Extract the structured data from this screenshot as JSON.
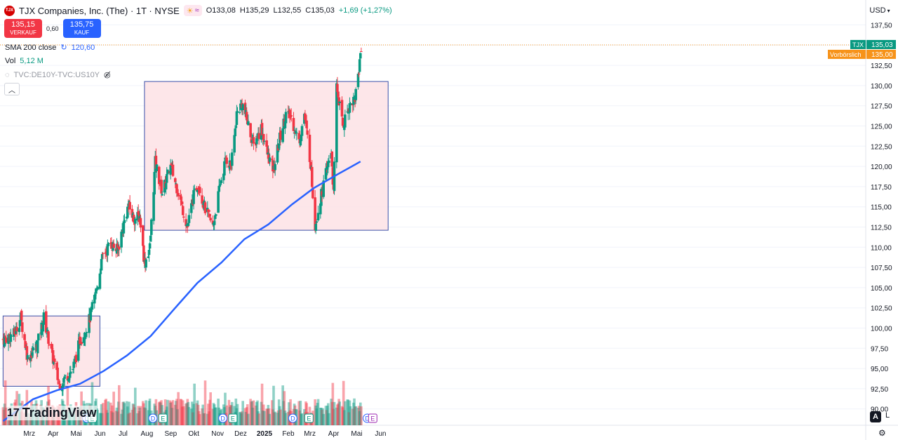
{
  "header": {
    "logo_text": "TJX",
    "title": "TJX Companies, Inc. (The) · 1T · NYSE",
    "open": "O133,08",
    "high": "H135,29",
    "low": "L132,55",
    "close": "C135,03",
    "change": "+1,69 (+1,27%)"
  },
  "trade": {
    "sell_price": "135,15",
    "sell_label": "VERKAUF",
    "spread": "0,60",
    "buy_price": "135,75",
    "buy_label": "KAUF"
  },
  "indicators": {
    "sma_label": "SMA 200 close",
    "sma_value": "120,60",
    "vol_label": "Vol",
    "vol_value": "5,12 M",
    "compare_label": "TVC:DE10Y-TVC:US10Y"
  },
  "currency": "USD",
  "branding": "TradingView",
  "scale_modes": {
    "auto": "A",
    "log": "L"
  },
  "colors": {
    "up": "#089981",
    "down": "#f23645",
    "sma": "#2962ff",
    "box_fill": "#fde2e5",
    "box_stroke": "#3a4fa8",
    "pre_label": "#f7931a"
  },
  "chart_data": {
    "type": "candlestick",
    "title": "TJX Companies, Inc. (The) · 1T · NYSE",
    "y_range": [
      90.0,
      138.5
    ],
    "y_ticks": [
      "137,50",
      "135,00",
      "132,50",
      "130,00",
      "127,50",
      "125,00",
      "122,50",
      "120,00",
      "117,50",
      "115,00",
      "112,50",
      "110,00",
      "107,50",
      "105,00",
      "102,50",
      "100,00",
      "97,50",
      "95,00",
      "92,50",
      "90,00"
    ],
    "y_tick_values": [
      137.5,
      135,
      132.5,
      130,
      127.5,
      125,
      122.5,
      120,
      117.5,
      115,
      112.5,
      110,
      107.5,
      105,
      102.5,
      100,
      97.5,
      95,
      92.5,
      90
    ],
    "x_labels": [
      "Mrz",
      "Apr",
      "Mai",
      "Jun",
      "Jul",
      "Aug",
      "Sep",
      "Okt",
      "Nov",
      "Dez",
      "2025",
      "Feb",
      "Mrz",
      "Apr",
      "Mai",
      "Jun"
    ],
    "bold_x_label": "2025",
    "current_label": {
      "symbol": "TJX",
      "value": "135,03"
    },
    "premarket_label": {
      "text": "Vorbörslich",
      "value": "135,00"
    },
    "rectangles": [
      {
        "from": "2024-02-05",
        "to": "2024-06-10",
        "top": 101.5,
        "bottom": 92.8
      },
      {
        "from": "2024-08-07",
        "to": "2025-06-20",
        "top": 130.5,
        "bottom": 112.1
      }
    ],
    "sma_200": [
      [
        "2024-02-05",
        88.5
      ],
      [
        "2024-03-15",
        91.2
      ],
      [
        "2024-04-15",
        92.3
      ],
      [
        "2024-05-15",
        93.1
      ],
      [
        "2024-06-15",
        94.7
      ],
      [
        "2024-07-15",
        96.6
      ],
      [
        "2024-08-15",
        99.0
      ],
      [
        "2024-09-15",
        102.4
      ],
      [
        "2024-10-15",
        105.6
      ],
      [
        "2024-11-15",
        108.1
      ],
      [
        "2024-12-15",
        111.0
      ],
      [
        "2025-01-15",
        112.8
      ],
      [
        "2025-02-15",
        115.3
      ],
      [
        "2025-03-15",
        117.3
      ],
      [
        "2025-04-15",
        119.0
      ],
      [
        "2025-05-15",
        120.6
      ]
    ],
    "price_path": [
      [
        "2024-02-05",
        98.6
      ],
      [
        "2024-02-20",
        99.3
      ],
      [
        "2024-02-28",
        101.3
      ],
      [
        "2024-03-08",
        96.3
      ],
      [
        "2024-03-20",
        97.8
      ],
      [
        "2024-03-29",
        101.3
      ],
      [
        "2024-04-08",
        97.0
      ],
      [
        "2024-04-18",
        93.0
      ],
      [
        "2024-04-25",
        93.8
      ],
      [
        "2024-05-06",
        95.0
      ],
      [
        "2024-05-15",
        98.5
      ],
      [
        "2024-05-22",
        99.6
      ],
      [
        "2024-05-28",
        101.3
      ],
      [
        "2024-06-05",
        104.5
      ],
      [
        "2024-06-14",
        109.0
      ],
      [
        "2024-06-24",
        110.5
      ],
      [
        "2024-07-03",
        109.5
      ],
      [
        "2024-07-10",
        112.5
      ],
      [
        "2024-07-17",
        115.2
      ],
      [
        "2024-07-24",
        113.5
      ],
      [
        "2024-08-01",
        113.8
      ],
      [
        "2024-08-07",
        108.0
      ],
      [
        "2024-08-14",
        110.0
      ],
      [
        "2024-08-21",
        120.5
      ],
      [
        "2024-08-30",
        116.8
      ],
      [
        "2024-09-10",
        120.0
      ],
      [
        "2024-09-20",
        116.8
      ],
      [
        "2024-10-02",
        112.5
      ],
      [
        "2024-10-09",
        116.0
      ],
      [
        "2024-10-16",
        118.0
      ],
      [
        "2024-10-24",
        115.0
      ],
      [
        "2024-11-04",
        112.5
      ],
      [
        "2024-11-14",
        118.0
      ],
      [
        "2024-11-21",
        121.0
      ],
      [
        "2024-11-28",
        120.0
      ],
      [
        "2024-12-05",
        126.5
      ],
      [
        "2024-12-12",
        127.8
      ],
      [
        "2024-12-19",
        125.5
      ],
      [
        "2024-12-27",
        122.5
      ],
      [
        "2025-01-06",
        124.8
      ],
      [
        "2025-01-14",
        121.5
      ],
      [
        "2025-01-22",
        119.5
      ],
      [
        "2025-01-30",
        123.5
      ],
      [
        "2025-02-07",
        126.5
      ],
      [
        "2025-02-14",
        126.0
      ],
      [
        "2025-02-24",
        123.0
      ],
      [
        "2025-03-03",
        126.5
      ],
      [
        "2025-03-11",
        120.5
      ],
      [
        "2025-03-17",
        112.8
      ],
      [
        "2025-03-24",
        116.0
      ],
      [
        "2025-03-31",
        119.0
      ],
      [
        "2025-04-07",
        122.0
      ],
      [
        "2025-04-10",
        116.5
      ],
      [
        "2025-04-14",
        130.0
      ],
      [
        "2025-04-22",
        125.0
      ],
      [
        "2025-04-30",
        127.5
      ],
      [
        "2025-05-08",
        128.5
      ],
      [
        "2025-05-13",
        132.0
      ],
      [
        "2025-05-16",
        135.0
      ]
    ],
    "volume_scale_note": "relative"
  }
}
